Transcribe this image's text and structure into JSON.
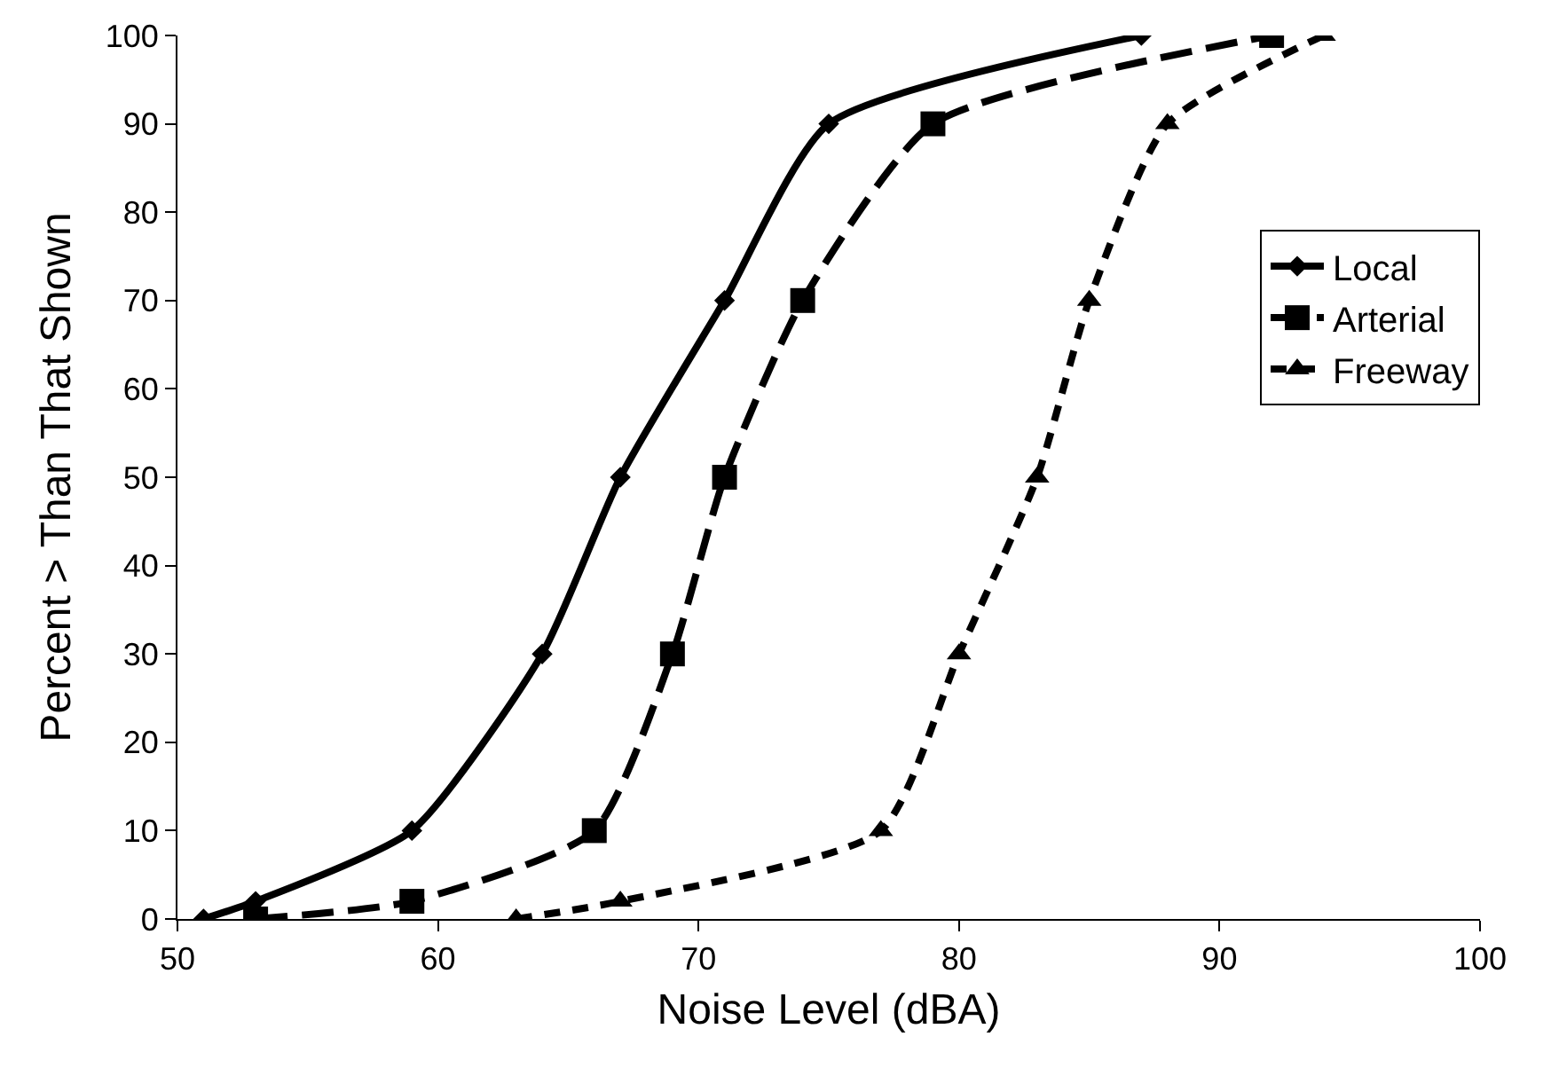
{
  "chart_data": {
    "type": "line",
    "xlabel": "Noise Level (dBA)",
    "ylabel": "Percent > Than That Shown",
    "xlim": [
      50,
      100
    ],
    "xticks": [
      50,
      60,
      70,
      80,
      90,
      100
    ],
    "ylim": [
      0,
      100
    ],
    "yticks": [
      0,
      10,
      20,
      30,
      40,
      50,
      60,
      70,
      80,
      90,
      100
    ],
    "grid": false,
    "legend": "right",
    "series": [
      {
        "name": "Local",
        "color": "#000000",
        "marker": "diamond",
        "line_style": "solid",
        "x": [
          51,
          53,
          59,
          64,
          67,
          71,
          75,
          87
        ],
        "values": [
          0,
          2,
          10,
          30,
          50,
          70,
          90,
          100
        ]
      },
      {
        "name": "Arterial",
        "color": "#000000",
        "marker": "square",
        "line_style": "dashed",
        "x": [
          53,
          59,
          66,
          69,
          71,
          74,
          79,
          92
        ],
        "values": [
          0,
          2,
          10,
          30,
          50,
          70,
          90,
          100
        ]
      },
      {
        "name": "Freeway",
        "color": "#000000",
        "marker": "triangle",
        "line_style": "dashed",
        "x": [
          63,
          67,
          77,
          80,
          83,
          85,
          88,
          94
        ],
        "values": [
          0,
          2,
          10,
          30,
          50,
          70,
          90,
          100
        ]
      }
    ]
  }
}
